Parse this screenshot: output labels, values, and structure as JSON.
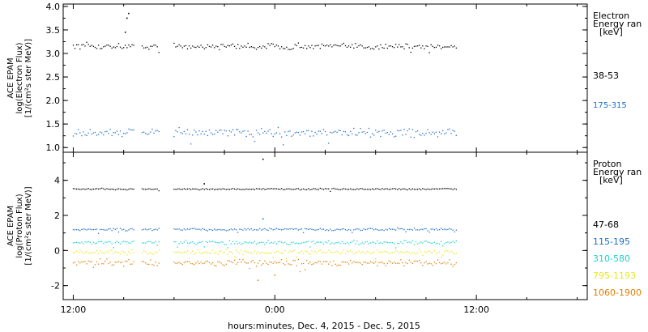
{
  "chart_data": [
    {
      "type": "scatter",
      "panel": "electron",
      "ylabel_lines": [
        "ACE EPAM",
        "log(Electron Flux)",
        "[1/(cm²s ster MeV)]"
      ],
      "ylim": [
        0.9,
        4.05
      ],
      "yticks": [
        1.0,
        1.5,
        2.0,
        2.5,
        3.0,
        3.5,
        4.0
      ],
      "ytick_labels": [
        "1.0",
        "1.5",
        "2.0",
        "2.5",
        "3.0",
        "3.5",
        "4.0"
      ],
      "legend_header": [
        "Electron",
        "Energy ran",
        "[keV]"
      ],
      "series": [
        {
          "name": "38-53",
          "color": "#000000",
          "base": 3.15,
          "noise": 0.06,
          "spikes": [
            {
              "x": 3.3,
              "y": 3.85
            },
            {
              "x": 3.2,
              "y": 3.75
            },
            {
              "x": 3.1,
              "y": 3.45
            }
          ]
        },
        {
          "name": "175-315",
          "color": "#1f6fc8",
          "base": 1.32,
          "noise": 0.08,
          "spikes": []
        }
      ]
    },
    {
      "type": "scatter",
      "panel": "proton",
      "ylabel_lines": [
        "ACE EPAM",
        "log(Proton Flux)",
        "[1/(cm²s ster MeV)]"
      ],
      "ylim": [
        -2.8,
        5.6
      ],
      "yticks": [
        -2,
        0,
        2,
        4
      ],
      "ytick_labels": [
        "-2",
        "0",
        "2",
        "4"
      ],
      "legend_header": [
        "Proton",
        "Energy ran",
        "[keV]"
      ],
      "series": [
        {
          "name": "47-68",
          "color": "#000000",
          "base": 3.5,
          "noise": 0.04,
          "spikes": [
            {
              "x": 7.8,
              "y": 3.8
            },
            {
              "x": 11.3,
              "y": 5.2
            }
          ]
        },
        {
          "name": "115-195",
          "color": "#1f6fc8",
          "base": 1.2,
          "noise": 0.06,
          "spikes": [
            {
              "x": 11.3,
              "y": 1.8
            }
          ]
        },
        {
          "name": "310-580",
          "color": "#20d0d0",
          "base": 0.45,
          "noise": 0.1,
          "spikes": []
        },
        {
          "name": "795-1193",
          "color": "#e8e820",
          "base": -0.1,
          "noise": 0.12,
          "spikes": []
        },
        {
          "name": "1060-1900",
          "color": "#e08000",
          "base": -0.7,
          "noise": 0.15,
          "spikes": [
            {
              "x": 11.0,
              "y": -1.7
            },
            {
              "x": 12.0,
              "y": -1.4
            }
          ]
        }
      ]
    }
  ],
  "x_axis": {
    "xlim_hours": [
      -0.6,
      30.6
    ],
    "tick_hours": [
      0,
      12,
      24
    ],
    "tick_labels": [
      "12:00",
      "0:00",
      "12:00"
    ],
    "minor_tick_hours": [
      3,
      6,
      9,
      15,
      18,
      21,
      27,
      30
    ],
    "data_end_hour": 22.9,
    "gaps_hours": [
      [
        3.7,
        4.1
      ],
      [
        5.1,
        5.9
      ]
    ],
    "xlabel": "hours:minutes, Dec.  4, 2015 - Dec.  5, 2015"
  }
}
